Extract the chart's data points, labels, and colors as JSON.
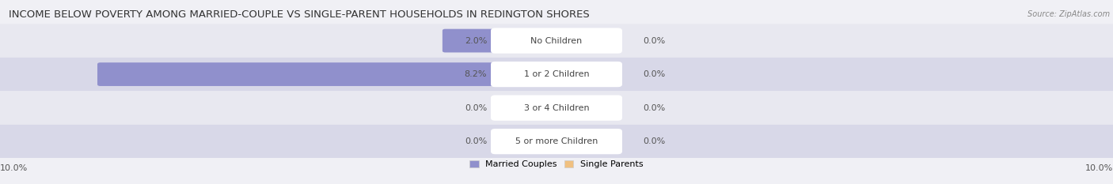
{
  "title": "INCOME BELOW POVERTY AMONG MARRIED-COUPLE VS SINGLE-PARENT HOUSEHOLDS IN REDINGTON SHORES",
  "source": "Source: ZipAtlas.com",
  "categories": [
    "No Children",
    "1 or 2 Children",
    "3 or 4 Children",
    "5 or more Children"
  ],
  "married_values": [
    2.0,
    8.2,
    0.0,
    0.0
  ],
  "single_values": [
    0.0,
    0.0,
    0.0,
    0.0
  ],
  "married_color": "#9090cc",
  "single_color": "#f0c080",
  "row_bg_even": "#e8e8f0",
  "row_bg_odd": "#d8d8e8",
  "axis_limit": 10.0,
  "title_fontsize": 9.5,
  "label_fontsize": 8,
  "legend_fontsize": 8,
  "axis_label_fontsize": 8,
  "figure_bg": "#f0f0f5",
  "center_label_bg": "#ffffff",
  "value_color": "#555555",
  "category_color": "#444444"
}
